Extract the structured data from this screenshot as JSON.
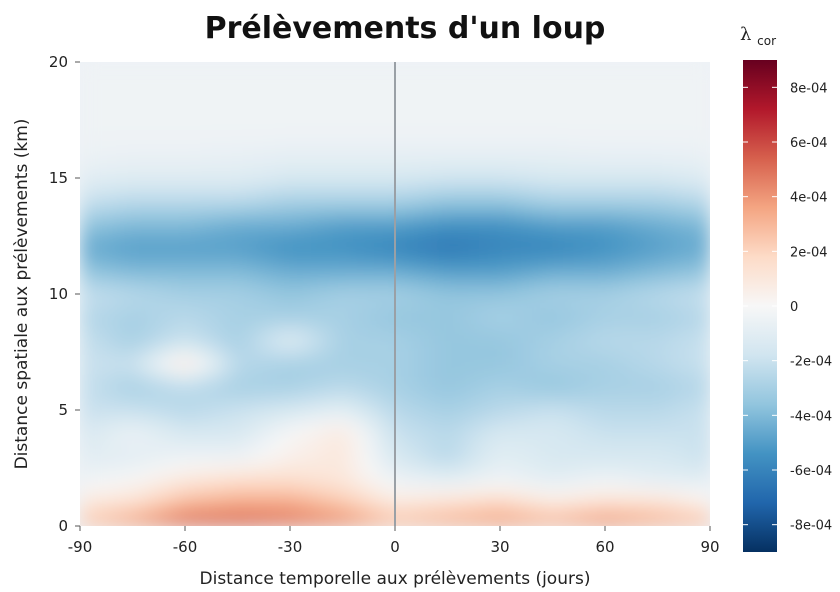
{
  "chart_data": {
    "type": "heatmap",
    "title": "Prélèvements d'un loup",
    "xlabel": "Distance temporelle aux prélèvements (jours)",
    "ylabel": "Distance spatiale aux prélèvements (km)",
    "xlim": [
      -90,
      90
    ],
    "ylim": [
      0,
      20
    ],
    "x_ticks": [
      -90,
      -60,
      -30,
      0,
      30,
      60,
      90
    ],
    "y_ticks": [
      0,
      5,
      10,
      15,
      20
    ],
    "vertical_reference_line_x": 0,
    "colorbar": {
      "title_main": "λ",
      "title_sub": "cor",
      "range": [
        -0.0009,
        0.0009
      ],
      "ticks": [
        -0.0008,
        -0.0006,
        -0.0004,
        -0.0002,
        0,
        0.0002,
        0.0004,
        0.0006,
        0.0008
      ],
      "tick_labels": [
        "-8e-04",
        "-6e-04",
        "-4e-04",
        "-2e-04",
        "0",
        "2e-04",
        "4e-04",
        "6e-04",
        "8e-04"
      ],
      "color_stops": [
        "#053061",
        "#2166ac",
        "#4393c3",
        "#92c5de",
        "#d1e5f0",
        "#f7f7f7",
        "#fddbc7",
        "#f4a582",
        "#d6604d",
        "#b2182b",
        "#67001f"
      ]
    },
    "x": [
      -90,
      -75,
      -60,
      -45,
      -30,
      -15,
      0,
      15,
      30,
      45,
      60,
      75,
      90
    ],
    "y": [
      0,
      1,
      2,
      3,
      4,
      5,
      6,
      7,
      8,
      9,
      10,
      11,
      12,
      13,
      14,
      15,
      16,
      17,
      18,
      19,
      20
    ],
    "z": [
      [
        0.00025,
        0.0004,
        0.00055,
        0.00055,
        0.0005,
        0.00045,
        0.0003,
        0.00035,
        0.0004,
        0.00035,
        0.00045,
        0.00035,
        0.0003
      ],
      [
        0.0001,
        0.00015,
        0.0003,
        0.00035,
        0.00035,
        0.00025,
        0.0001,
        0.00015,
        0.0002,
        0.0001,
        0.00015,
        0.00015,
        5e-05
      ],
      [
        -5e-05,
        0.0,
        0.0001,
        0.00015,
        0.00015,
        0.0001,
        -5e-05,
        -0.0001,
        -5e-05,
        -0.0001,
        -5e-05,
        -0.0001,
        -0.0001
      ],
      [
        -0.0001,
        -0.0001,
        -5e-05,
        -5e-05,
        5e-05,
        0.0001,
        -0.00015,
        -0.00025,
        -0.0001,
        -0.00015,
        -0.00015,
        -0.00015,
        -0.0002
      ],
      [
        -0.00015,
        -5e-05,
        -0.00015,
        -0.00015,
        0.0,
        0.0001,
        -0.0002,
        -0.00025,
        -0.00015,
        -0.00015,
        -0.0002,
        -0.0002,
        -0.0002
      ],
      [
        -0.0002,
        -0.0002,
        -0.00025,
        -0.0002,
        -0.00015,
        -0.0001,
        -0.00025,
        -0.0003,
        -0.00025,
        -0.0002,
        -0.00025,
        -0.00025,
        -0.0002
      ],
      [
        -0.0002,
        -0.0003,
        -0.00025,
        -0.0003,
        -0.0003,
        -0.00025,
        -0.0003,
        -0.00035,
        -0.0003,
        -0.00035,
        -0.0003,
        -0.0003,
        -0.00025
      ],
      [
        -0.0002,
        -0.0002,
        0.0001,
        -0.00025,
        -0.0003,
        -0.0003,
        -0.0003,
        -0.00035,
        -0.00035,
        -0.0003,
        -0.0003,
        -0.00025,
        -0.0002
      ],
      [
        -0.0002,
        -0.0003,
        -0.0002,
        -0.0003,
        -0.0001,
        -0.0003,
        -0.0003,
        -0.00035,
        -0.00035,
        -0.0003,
        -0.00025,
        -0.00025,
        -0.0002
      ],
      [
        -0.00025,
        -0.0003,
        -0.00025,
        -0.0003,
        -0.0003,
        -0.0003,
        -0.00035,
        -0.00035,
        -0.0003,
        -0.00035,
        -0.0003,
        -0.0003,
        -0.00025
      ],
      [
        -0.0002,
        -0.00025,
        -0.0003,
        -0.0003,
        -0.00035,
        -0.0003,
        -0.0003,
        -0.00035,
        -0.00035,
        -0.0003,
        -0.0003,
        -0.00025,
        -0.0002
      ],
      [
        -0.00035,
        -0.0004,
        -0.0004,
        -0.0004,
        -0.00045,
        -0.00045,
        -0.00045,
        -0.0005,
        -0.0005,
        -0.00045,
        -0.00045,
        -0.0004,
        -0.00035
      ],
      [
        -0.00045,
        -0.0005,
        -0.0005,
        -0.0005,
        -0.00055,
        -0.00055,
        -0.0006,
        -0.00065,
        -0.0006,
        -0.0006,
        -0.00055,
        -0.0005,
        -0.00045
      ],
      [
        -0.00035,
        -0.0004,
        -0.0004,
        -0.00045,
        -0.00045,
        -0.0005,
        -0.0005,
        -0.00055,
        -0.00055,
        -0.0005,
        -0.0005,
        -0.00045,
        -0.0004
      ],
      [
        -0.0002,
        -0.00025,
        -0.00025,
        -0.00025,
        -0.0003,
        -0.0003,
        -0.0003,
        -0.00035,
        -0.00035,
        -0.0003,
        -0.0003,
        -0.0003,
        -0.00025
      ],
      [
        -0.0001,
        -0.00012,
        -0.00012,
        -0.00012,
        -0.00015,
        -0.00015,
        -0.00015,
        -0.00018,
        -0.00018,
        -0.00015,
        -0.00015,
        -0.00015,
        -0.00012
      ],
      [
        -5e-05,
        -6e-05,
        -6e-05,
        -7e-05,
        -8e-05,
        -8e-05,
        -8e-05,
        -8e-05,
        -8e-05,
        -8e-05,
        -7e-05,
        -7e-05,
        -6e-05
      ],
      [
        -4e-05,
        -4e-05,
        -4e-05,
        -4e-05,
        -4e-05,
        -4e-05,
        -4e-05,
        -4e-05,
        -4e-05,
        -4e-05,
        -4e-05,
        -4e-05,
        -4e-05
      ],
      [
        -4e-05,
        -4e-05,
        -4e-05,
        -4e-05,
        -4e-05,
        -4e-05,
        -4e-05,
        -4e-05,
        -4e-05,
        -4e-05,
        -4e-05,
        -4e-05,
        -4e-05
      ],
      [
        -4e-05,
        -4e-05,
        -4e-05,
        -4e-05,
        -4e-05,
        -4e-05,
        -4e-05,
        -4e-05,
        -4e-05,
        -4e-05,
        -4e-05,
        -4e-05,
        -4e-05
      ],
      [
        -4e-05,
        -4e-05,
        -4e-05,
        -4e-05,
        -4e-05,
        -4e-05,
        -4e-05,
        -4e-05,
        -4e-05,
        -4e-05,
        -4e-05,
        -4e-05,
        -4e-05
      ]
    ]
  }
}
